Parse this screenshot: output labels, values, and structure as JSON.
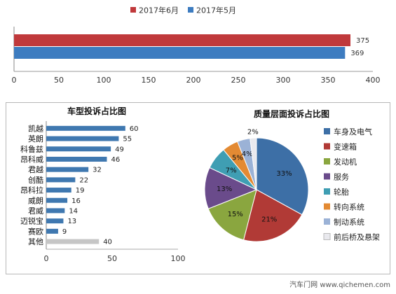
{
  "chart_data": [
    {
      "type": "bar",
      "orientation": "horizontal",
      "title": "",
      "categories": [
        ""
      ],
      "series": [
        {
          "name": "2017年6月",
          "color": "#c0393b",
          "values": [
            375
          ]
        },
        {
          "name": "2017年5月",
          "color": "#3d7cc0",
          "values": [
            369
          ]
        }
      ],
      "xlim": [
        0,
        400
      ],
      "ticks": [
        0,
        50,
        100,
        150,
        200,
        250,
        300,
        350,
        400
      ],
      "legend": "top",
      "grid": false
    },
    {
      "type": "bar",
      "orientation": "horizontal",
      "title": "车型投诉占比图",
      "categories": [
        "凯越",
        "英朗",
        "科鲁兹",
        "昂科威",
        "君越",
        "创酷",
        "昂科拉",
        "威朗",
        "君威",
        "迈锐宝",
        "赛欧",
        "其他"
      ],
      "values": [
        60,
        55,
        49,
        46,
        32,
        22,
        19,
        16,
        14,
        13,
        9,
        40
      ],
      "colors": [
        "#3f78b0",
        "#3f78b0",
        "#3f78b0",
        "#3f78b0",
        "#3f78b0",
        "#3f78b0",
        "#3f78b0",
        "#3f78b0",
        "#3f78b0",
        "#3f78b0",
        "#3f78b0",
        "#c6c6c6"
      ],
      "xlim": [
        0,
        100
      ],
      "ticks": [
        0,
        50,
        100
      ]
    },
    {
      "type": "pie",
      "title": "质量层面投诉占比图",
      "slices": [
        {
          "label": "车身及电气",
          "value": 33,
          "text": "33%",
          "color": "#3d6fa6"
        },
        {
          "label": "变速箱",
          "value": 21,
          "text": "21%",
          "color": "#b13a36"
        },
        {
          "label": "发动机",
          "value": 15,
          "text": "15%",
          "color": "#8aa63f"
        },
        {
          "label": "服务",
          "value": 13,
          "text": "13%",
          "color": "#6a4b8b"
        },
        {
          "label": "轮胎",
          "value": 7,
          "text": "7%",
          "color": "#3f9eb3"
        },
        {
          "label": "转向系统",
          "value": 5,
          "text": "5%",
          "color": "#e38a33"
        },
        {
          "label": "制动系统",
          "value": 4,
          "text": "4%",
          "color": "#9bb2d6"
        },
        {
          "label": "前后桥及悬架",
          "value": 2,
          "text": "2%",
          "color": "#e9e9ee"
        }
      ],
      "legend": "right"
    }
  ],
  "credit": "汽车门网 www.qichemen.com"
}
